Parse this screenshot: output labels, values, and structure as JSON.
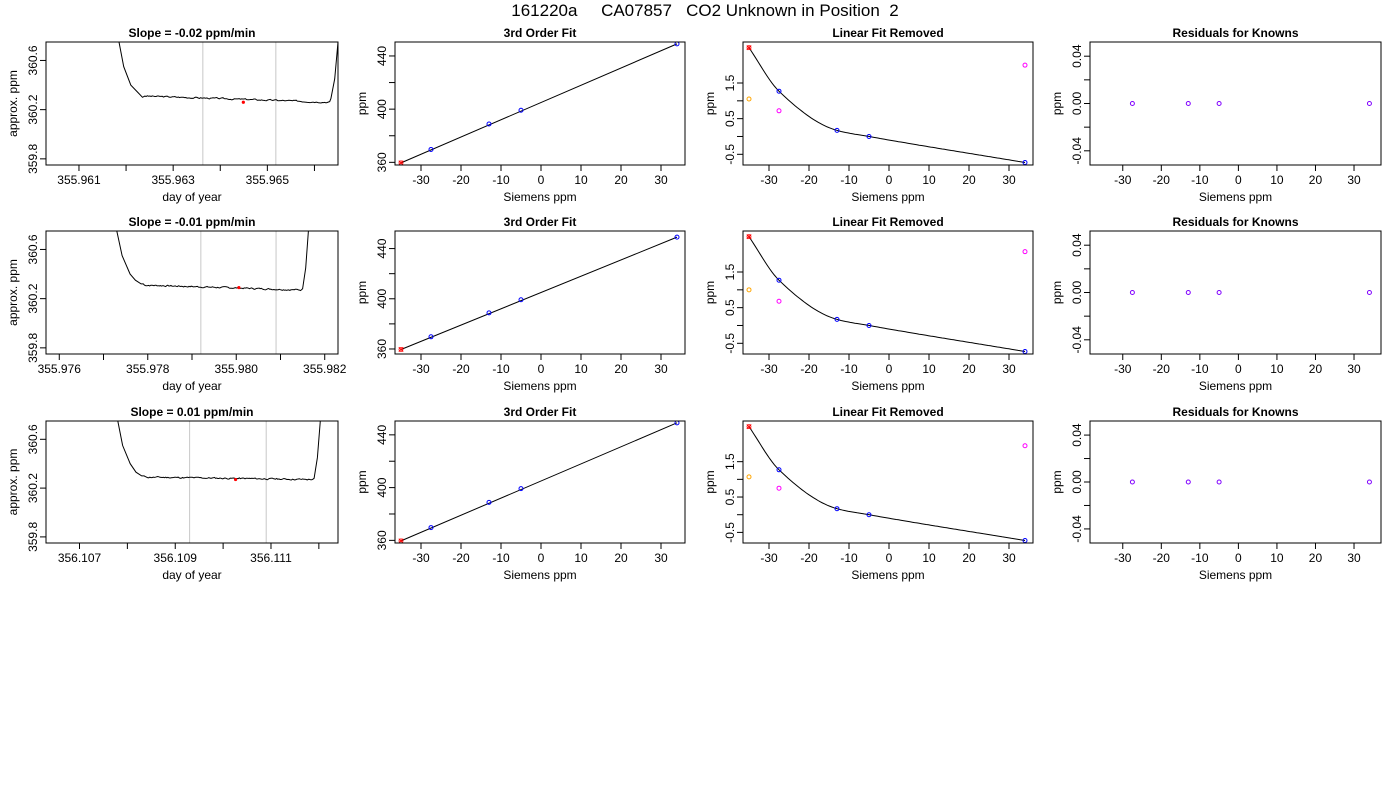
{
  "page": {
    "title": "161220a     CA07857   CO2 Unknown in Position  2"
  },
  "colors": {
    "line": "#000000",
    "vertical_marker": "#c8c8c8",
    "known_point": "#0000ff",
    "unknown_point": "#ff00ff",
    "first_point": "#ff0000",
    "extra_point": "#ffa500",
    "residual_point": "#8000ff"
  },
  "chart_data": [
    {
      "type": "line",
      "title": "Slope =  -0.02  ppm/min",
      "xlabel": "day of year",
      "ylabel": "approx. ppm",
      "xlim": [
        355.9603,
        355.9665
      ],
      "ylim": [
        359.75,
        360.75
      ],
      "xticks": [
        355.961,
        355.962,
        355.963,
        355.964,
        355.965,
        355.966
      ],
      "xtick_labels": [
        "355.961",
        "",
        "355.963",
        "",
        "355.965",
        ""
      ],
      "yticks": [
        359.8,
        360.2,
        360.6
      ],
      "ytick_labels": [
        "359.8",
        "360.2",
        "360.6"
      ],
      "vlines": [
        355.96363,
        355.96518
      ],
      "marker": {
        "x": 355.96449,
        "y": 360.26
      },
      "trace": {
        "x": [
          355.96185,
          355.96195,
          355.9621,
          355.96225,
          355.96235,
          355.9624,
          355.96635,
          355.96643,
          355.9665
        ],
        "y": [
          360.75,
          360.55,
          360.4,
          360.34,
          360.3,
          360.31,
          360.29,
          360.45,
          360.75
        ],
        "flat_from": 355.9624,
        "flat_to": 355.96635,
        "flat_y0": 360.31,
        "flat_y1": 360.26,
        "noise": 0.011,
        "seed": 3
      }
    },
    {
      "type": "line",
      "title": "3rd Order Fit",
      "xlabel": "Siemens ppm",
      "ylabel": "ppm",
      "xlim": [
        -36.5,
        36
      ],
      "ylim": [
        358,
        450.5
      ],
      "xticks": [
        -30,
        -20,
        -10,
        0,
        10,
        20,
        30
      ],
      "xtick_labels": [
        "-30",
        "-20",
        "-10",
        "0",
        "10",
        "20",
        "30"
      ],
      "yticks": [
        360,
        380,
        400,
        420,
        440
      ],
      "ytick_labels": [
        "360",
        "",
        "400",
        "",
        "440"
      ],
      "fit_line": {
        "x": [
          -35,
          34
        ],
        "y": [
          359.6,
          449.1
        ]
      },
      "points": [
        {
          "x": -35,
          "y": 359.6,
          "color": "first_point",
          "shape": "x"
        },
        {
          "x": -27.5,
          "y": 369.7,
          "color": "known_point",
          "shape": "o"
        },
        {
          "x": -13,
          "y": 388.8,
          "color": "known_point",
          "shape": "o"
        },
        {
          "x": -5,
          "y": 399.2,
          "color": "known_point",
          "shape": "o"
        },
        {
          "x": 34,
          "y": 449.1,
          "color": "known_point",
          "shape": "o"
        }
      ]
    },
    {
      "type": "scatter",
      "title": "Linear Fit Removed",
      "xlabel": "Siemens ppm",
      "ylabel": "ppm",
      "xlim": [
        -36.5,
        36
      ],
      "ylim": [
        -0.8,
        2.65
      ],
      "xticks": [
        -30,
        -20,
        -10,
        0,
        10,
        20,
        30
      ],
      "xtick_labels": [
        "-30",
        "-20",
        "-10",
        "0",
        "10",
        "20",
        "30"
      ],
      "yticks": [
        -0.5,
        0,
        0.5,
        1,
        1.5
      ],
      "ytick_labels": [
        "-0.5",
        "",
        "0.5",
        "",
        "1.5"
      ],
      "curve": {
        "x": [
          -35,
          -27.5,
          -13,
          -5,
          34
        ],
        "y": [
          2.49,
          1.27,
          0.17,
          0.0,
          -0.73
        ]
      },
      "points": [
        {
          "x": -35,
          "y": 2.49,
          "color": "first_point",
          "shape": "x"
        },
        {
          "x": -27.5,
          "y": 1.27,
          "color": "known_point",
          "shape": "o"
        },
        {
          "x": -13,
          "y": 0.17,
          "color": "known_point",
          "shape": "o"
        },
        {
          "x": -5,
          "y": 0.0,
          "color": "known_point",
          "shape": "o"
        },
        {
          "x": 34,
          "y": -0.73,
          "color": "known_point",
          "shape": "o"
        },
        {
          "x": -35,
          "y": 1.05,
          "color": "extra_point",
          "shape": "o"
        },
        {
          "x": -27.5,
          "y": 0.72,
          "color": "unknown_point",
          "shape": "o"
        },
        {
          "x": 34,
          "y": 2.0,
          "color": "unknown_point",
          "shape": "o"
        }
      ]
    },
    {
      "type": "scatter",
      "title": "Residuals for Knowns",
      "xlabel": "Siemens ppm",
      "ylabel": "ppm",
      "xlim": [
        -38.5,
        37
      ],
      "ylim": [
        -0.052,
        0.052
      ],
      "xticks": [
        -30,
        -20,
        -10,
        0,
        10,
        20,
        30
      ],
      "xtick_labels": [
        "-30",
        "-20",
        "-10",
        "0",
        "10",
        "20",
        "30"
      ],
      "yticks": [
        -0.04,
        -0.02,
        0,
        0.02,
        0.04
      ],
      "ytick_labels": [
        "-0.04",
        "",
        "0.00",
        "",
        "0.04"
      ],
      "points": [
        {
          "x": -27.5,
          "y": 0,
          "color": "residual_point",
          "shape": "o"
        },
        {
          "x": -13,
          "y": 0,
          "color": "residual_point",
          "shape": "o"
        },
        {
          "x": -5,
          "y": 0,
          "color": "residual_point",
          "shape": "o"
        },
        {
          "x": 34,
          "y": 0,
          "color": "residual_point",
          "shape": "o"
        }
      ]
    },
    {
      "type": "line",
      "title": "Slope =  -0.01  ppm/min",
      "xlabel": "day of year",
      "ylabel": "approx. ppm",
      "xlim": [
        355.9757,
        355.9823
      ],
      "ylim": [
        359.75,
        360.75
      ],
      "xticks": [
        355.976,
        355.977,
        355.978,
        355.979,
        355.98,
        355.981,
        355.982
      ],
      "xtick_labels": [
        "355.976",
        "",
        "355.978",
        "",
        "355.980",
        "",
        "355.982"
      ],
      "yticks": [
        359.8,
        360.2,
        360.6
      ],
      "ytick_labels": [
        "359.8",
        "360.2",
        "360.6"
      ],
      "vlines": [
        355.9792,
        355.9809
      ],
      "marker": {
        "x": 355.98006,
        "y": 360.29
      },
      "trace": {
        "x": [
          355.9773,
          355.97742,
          355.9776,
          355.97772,
          355.97785,
          355.9779,
          355.9815,
          355.98157,
          355.98163
        ],
        "y": [
          360.75,
          360.55,
          360.4,
          360.35,
          360.32,
          360.32,
          360.28,
          360.45,
          360.75
        ],
        "flat_from": 355.9779,
        "flat_to": 355.9815,
        "flat_y0": 360.31,
        "flat_y1": 360.27,
        "noise": 0.011,
        "seed": 7
      }
    },
    {
      "type": "line",
      "title": "3rd Order Fit",
      "xlabel": "Siemens ppm",
      "ylabel": "ppm",
      "xlim": [
        -36.5,
        36
      ],
      "ylim": [
        356,
        454
      ],
      "xticks": [
        -30,
        -20,
        -10,
        0,
        10,
        20,
        30
      ],
      "xtick_labels": [
        "-30",
        "-20",
        "-10",
        "0",
        "10",
        "20",
        "30"
      ],
      "yticks": [
        360,
        380,
        400,
        420,
        440
      ],
      "ytick_labels": [
        "360",
        "",
        "400",
        "",
        "440"
      ],
      "fit_line": {
        "x": [
          -35,
          34
        ],
        "y": [
          359.6,
          449.1
        ]
      },
      "points": [
        {
          "x": -35,
          "y": 359.6,
          "color": "first_point",
          "shape": "x"
        },
        {
          "x": -27.5,
          "y": 369.7,
          "color": "known_point",
          "shape": "o"
        },
        {
          "x": -13,
          "y": 388.8,
          "color": "known_point",
          "shape": "o"
        },
        {
          "x": -5,
          "y": 399.2,
          "color": "known_point",
          "shape": "o"
        },
        {
          "x": 34,
          "y": 449.1,
          "color": "known_point",
          "shape": "o"
        }
      ]
    },
    {
      "type": "scatter",
      "title": "Linear Fit Removed",
      "xlabel": "Siemens ppm",
      "ylabel": "ppm",
      "xlim": [
        -36.5,
        36
      ],
      "ylim": [
        -0.8,
        2.65
      ],
      "xticks": [
        -30,
        -20,
        -10,
        0,
        10,
        20,
        30
      ],
      "xtick_labels": [
        "-30",
        "-20",
        "-10",
        "0",
        "10",
        "20",
        "30"
      ],
      "yticks": [
        -0.5,
        0,
        0.5,
        1,
        1.5
      ],
      "ytick_labels": [
        "-0.5",
        "",
        "0.5",
        "",
        "1.5"
      ],
      "curve": {
        "x": [
          -35,
          -27.5,
          -13,
          -5,
          34
        ],
        "y": [
          2.49,
          1.27,
          0.17,
          0.0,
          -0.73
        ]
      },
      "points": [
        {
          "x": -35,
          "y": 2.49,
          "color": "first_point",
          "shape": "x"
        },
        {
          "x": -27.5,
          "y": 1.27,
          "color": "known_point",
          "shape": "o"
        },
        {
          "x": -13,
          "y": 0.17,
          "color": "known_point",
          "shape": "o"
        },
        {
          "x": -5,
          "y": 0.0,
          "color": "known_point",
          "shape": "o"
        },
        {
          "x": 34,
          "y": -0.73,
          "color": "known_point",
          "shape": "o"
        },
        {
          "x": -35,
          "y": 1.0,
          "color": "extra_point",
          "shape": "o"
        },
        {
          "x": -27.5,
          "y": 0.68,
          "color": "unknown_point",
          "shape": "o"
        },
        {
          "x": 34,
          "y": 2.07,
          "color": "unknown_point",
          "shape": "o"
        }
      ]
    },
    {
      "type": "scatter",
      "title": "Residuals for Knowns",
      "xlabel": "Siemens ppm",
      "ylabel": "ppm",
      "xlim": [
        -38.5,
        37
      ],
      "ylim": [
        -0.052,
        0.052
      ],
      "xticks": [
        -30,
        -20,
        -10,
        0,
        10,
        20,
        30
      ],
      "xtick_labels": [
        "-30",
        "-20",
        "-10",
        "0",
        "10",
        "20",
        "30"
      ],
      "yticks": [
        -0.04,
        -0.02,
        0,
        0.02,
        0.04
      ],
      "ytick_labels": [
        "-0.04",
        "",
        "0.00",
        "",
        "0.04"
      ],
      "points": [
        {
          "x": -27.5,
          "y": 0,
          "color": "residual_point",
          "shape": "o"
        },
        {
          "x": -13,
          "y": 0,
          "color": "residual_point",
          "shape": "o"
        },
        {
          "x": -5,
          "y": 0,
          "color": "residual_point",
          "shape": "o"
        },
        {
          "x": 34,
          "y": 0,
          "color": "residual_point",
          "shape": "o"
        }
      ]
    },
    {
      "type": "line",
      "title": "Slope =  0.01  ppm/min",
      "xlabel": "day of year",
      "ylabel": "approx. ppm",
      "xlim": [
        356.1063,
        356.1124
      ],
      "ylim": [
        359.75,
        360.75
      ],
      "xticks": [
        356.107,
        356.108,
        356.109,
        356.11,
        356.111,
        356.112
      ],
      "xtick_labels": [
        "356.107",
        "",
        "356.109",
        "",
        "356.111",
        ""
      ],
      "yticks": [
        359.8,
        360.2,
        360.6
      ],
      "ytick_labels": [
        "359.8",
        "360.2",
        "360.6"
      ],
      "vlines": [
        356.1093,
        356.1109
      ],
      "marker": {
        "x": 356.11026,
        "y": 360.27
      },
      "trace": {
        "x": [
          356.1078,
          356.1079,
          356.10806,
          356.10818,
          356.1083,
          356.10835,
          356.1119,
          356.11197,
          356.11203
        ],
        "y": [
          360.75,
          360.55,
          360.4,
          360.33,
          360.3,
          360.3,
          360.28,
          360.45,
          360.75
        ],
        "flat_from": 356.10835,
        "flat_to": 356.1119,
        "flat_y0": 360.29,
        "flat_y1": 360.27,
        "noise": 0.011,
        "seed": 11
      }
    },
    {
      "type": "line",
      "title": "3rd Order Fit",
      "xlabel": "Siemens ppm",
      "ylabel": "ppm",
      "xlim": [
        -36.5,
        36
      ],
      "ylim": [
        358,
        450.5
      ],
      "xticks": [
        -30,
        -20,
        -10,
        0,
        10,
        20,
        30
      ],
      "xtick_labels": [
        "-30",
        "-20",
        "-10",
        "0",
        "10",
        "20",
        "30"
      ],
      "yticks": [
        360,
        380,
        400,
        420,
        440
      ],
      "ytick_labels": [
        "360",
        "",
        "400",
        "",
        "440"
      ],
      "fit_line": {
        "x": [
          -35,
          34
        ],
        "y": [
          359.6,
          449.1
        ]
      },
      "points": [
        {
          "x": -35,
          "y": 359.6,
          "color": "first_point",
          "shape": "x"
        },
        {
          "x": -27.5,
          "y": 369.7,
          "color": "known_point",
          "shape": "o"
        },
        {
          "x": -13,
          "y": 388.8,
          "color": "known_point",
          "shape": "o"
        },
        {
          "x": -5,
          "y": 399.2,
          "color": "known_point",
          "shape": "o"
        },
        {
          "x": 34,
          "y": 449.1,
          "color": "known_point",
          "shape": "o"
        }
      ]
    },
    {
      "type": "scatter",
      "title": "Linear Fit Removed",
      "xlabel": "Siemens ppm",
      "ylabel": "ppm",
      "xlim": [
        -36.5,
        36
      ],
      "ylim": [
        -0.8,
        2.65
      ],
      "xticks": [
        -30,
        -20,
        -10,
        0,
        10,
        20,
        30
      ],
      "xtick_labels": [
        "-30",
        "-20",
        "-10",
        "0",
        "10",
        "20",
        "30"
      ],
      "yticks": [
        -0.5,
        0,
        0.5,
        1,
        1.5
      ],
      "ytick_labels": [
        "-0.5",
        "",
        "0.5",
        "",
        "1.5"
      ],
      "curve": {
        "x": [
          -35,
          -27.5,
          -13,
          -5,
          34
        ],
        "y": [
          2.49,
          1.27,
          0.17,
          0.0,
          -0.73
        ]
      },
      "points": [
        {
          "x": -35,
          "y": 2.49,
          "color": "first_point",
          "shape": "x"
        },
        {
          "x": -27.5,
          "y": 1.27,
          "color": "known_point",
          "shape": "o"
        },
        {
          "x": -13,
          "y": 0.17,
          "color": "known_point",
          "shape": "o"
        },
        {
          "x": -5,
          "y": 0.0,
          "color": "known_point",
          "shape": "o"
        },
        {
          "x": 34,
          "y": -0.73,
          "color": "known_point",
          "shape": "o"
        },
        {
          "x": -35,
          "y": 1.07,
          "color": "extra_point",
          "shape": "o"
        },
        {
          "x": -27.5,
          "y": 0.75,
          "color": "unknown_point",
          "shape": "o"
        },
        {
          "x": 34,
          "y": 1.95,
          "color": "unknown_point",
          "shape": "o"
        }
      ]
    },
    {
      "type": "scatter",
      "title": "Residuals for Knowns",
      "xlabel": "Siemens ppm",
      "ylabel": "ppm",
      "xlim": [
        -38.5,
        37
      ],
      "ylim": [
        -0.052,
        0.052
      ],
      "xticks": [
        -30,
        -20,
        -10,
        0,
        10,
        20,
        30
      ],
      "xtick_labels": [
        "-30",
        "-20",
        "-10",
        "0",
        "10",
        "20",
        "30"
      ],
      "yticks": [
        -0.04,
        -0.02,
        0,
        0.02,
        0.04
      ],
      "ytick_labels": [
        "-0.04",
        "",
        "0.00",
        "",
        "0.04"
      ],
      "points": [
        {
          "x": -27.5,
          "y": 0,
          "color": "residual_point",
          "shape": "o"
        },
        {
          "x": -13,
          "y": 0,
          "color": "residual_point",
          "shape": "o"
        },
        {
          "x": -5,
          "y": 0,
          "color": "residual_point",
          "shape": "o"
        },
        {
          "x": 34,
          "y": 0,
          "color": "residual_point",
          "shape": "o"
        }
      ]
    }
  ]
}
